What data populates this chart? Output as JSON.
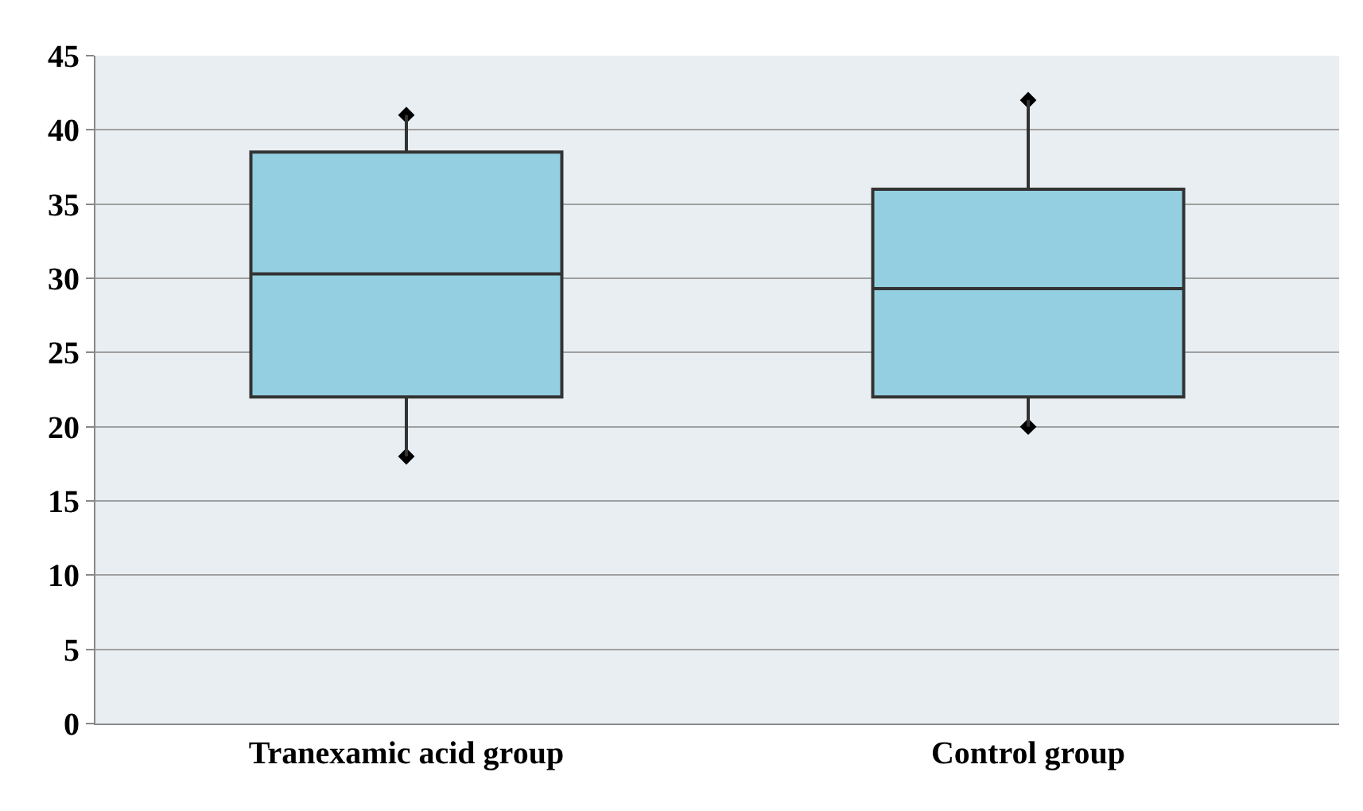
{
  "chart_data": {
    "type": "box",
    "categories": [
      "Tranexamic acid group",
      "Control group"
    ],
    "boxes": [
      {
        "low": 18,
        "q1": 22,
        "median": 30.3,
        "q3": 38.5,
        "high": 41
      },
      {
        "low": 20,
        "q1": 22,
        "median": 29.3,
        "q3": 36,
        "high": 42
      }
    ],
    "series": [
      {
        "type": "scatter",
        "x": [
          "Tranexamic acid group",
          "Tranexamic acid group",
          "Control group",
          "Control group"
        ],
        "values": [
          18,
          41,
          20,
          42
        ],
        "color": "#000000"
      }
    ],
    "color": "#93cfe0",
    "ylim": [
      0,
      45
    ],
    "yticks": [
      0,
      5,
      10,
      15,
      20,
      25,
      30,
      35,
      40,
      45
    ],
    "grid": "y",
    "marker": "diamond",
    "legend": false
  }
}
